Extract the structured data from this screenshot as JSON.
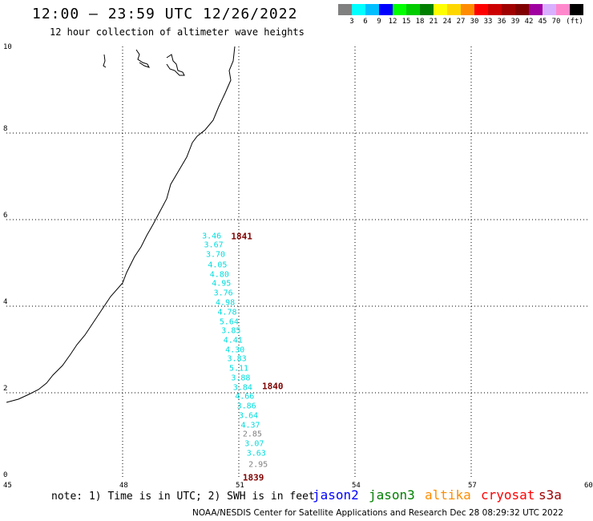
{
  "header": {
    "title": "12:00 – 23:59 UTC 12/26/2022",
    "subtitle": "12 hour collection of altimeter wave heights"
  },
  "colorbar": {
    "colors": [
      "#808080",
      "#00ffff",
      "#00bfff",
      "#0000ff",
      "#00ff00",
      "#00cc00",
      "#008000",
      "#ffff00",
      "#ffd700",
      "#ff8c00",
      "#ff0000",
      "#cc0000",
      "#a00000",
      "#800000",
      "#a000a0",
      "#d8b0ff",
      "#ff88cc",
      "#000000"
    ],
    "labels": [
      "3",
      "6",
      "9",
      "12",
      "15",
      "18",
      "21",
      "24",
      "27",
      "30",
      "33",
      "36",
      "39",
      "42",
      "45",
      "70",
      "(ft)"
    ]
  },
  "map": {
    "x_ticks": [
      "45",
      "48",
      "51",
      "54",
      "57",
      "60"
    ],
    "y_ticks": [
      "0",
      "2",
      "4",
      "6",
      "8",
      "10"
    ],
    "xlim": [
      45,
      60
    ],
    "ylim": [
      0,
      10
    ],
    "grid": true,
    "coastline_color": "#000000",
    "passes": [
      {
        "label": "1841",
        "x": 50.8,
        "y": 5.62,
        "color": "#800000"
      },
      {
        "label": "1840",
        "x": 51.6,
        "y": 2.15,
        "color": "#800000"
      },
      {
        "label": "1839",
        "x": 51.1,
        "y": 0.03,
        "color": "#800000"
      }
    ],
    "observations": [
      {
        "v": "3.46",
        "x": 50.3,
        "y": 5.62,
        "color": "#00dddd"
      },
      {
        "v": "3.67",
        "x": 50.35,
        "y": 5.4,
        "color": "#00dddd"
      },
      {
        "v": "3.70",
        "x": 50.4,
        "y": 5.18,
        "color": "#00dddd"
      },
      {
        "v": "4.05",
        "x": 50.45,
        "y": 4.95,
        "color": "#00dddd"
      },
      {
        "v": "4.80",
        "x": 50.5,
        "y": 4.73,
        "color": "#00dddd"
      },
      {
        "v": "4.95",
        "x": 50.55,
        "y": 4.52,
        "color": "#00dddd"
      },
      {
        "v": "3.76",
        "x": 50.6,
        "y": 4.3,
        "color": "#00dddd"
      },
      {
        "v": "4.98",
        "x": 50.65,
        "y": 4.08,
        "color": "#00dddd"
      },
      {
        "v": "4.78",
        "x": 50.7,
        "y": 3.85,
        "color": "#00dddd"
      },
      {
        "v": "5.64",
        "x": 50.75,
        "y": 3.63,
        "color": "#00dddd"
      },
      {
        "v": "3.85",
        "x": 50.8,
        "y": 3.42,
        "color": "#00dddd"
      },
      {
        "v": "4.41",
        "x": 50.85,
        "y": 3.2,
        "color": "#00dddd"
      },
      {
        "v": "4.30",
        "x": 50.9,
        "y": 2.98,
        "color": "#00dddd"
      },
      {
        "v": "3.83",
        "x": 50.95,
        "y": 2.77,
        "color": "#00dddd"
      },
      {
        "v": "5.11",
        "x": 51.0,
        "y": 2.55,
        "color": "#00dddd"
      },
      {
        "v": "3.88",
        "x": 51.05,
        "y": 2.33,
        "color": "#00dddd"
      },
      {
        "v": "3.84",
        "x": 51.1,
        "y": 2.12,
        "color": "#00dddd"
      },
      {
        "v": "4.66",
        "x": 51.15,
        "y": 1.9,
        "color": "#00dddd"
      },
      {
        "v": "3.86",
        "x": 51.2,
        "y": 1.68,
        "color": "#00dddd"
      },
      {
        "v": "3.64",
        "x": 51.25,
        "y": 1.47,
        "color": "#00dddd"
      },
      {
        "v": "4.37",
        "x": 51.3,
        "y": 1.25,
        "color": "#00dddd"
      },
      {
        "v": "2.85",
        "x": 51.35,
        "y": 1.03,
        "color": "#808080"
      },
      {
        "v": "3.07",
        "x": 51.4,
        "y": 0.82,
        "color": "#00dddd"
      },
      {
        "v": "3.63",
        "x": 51.45,
        "y": 0.6,
        "color": "#00dddd"
      },
      {
        "v": "2.95",
        "x": 51.5,
        "y": 0.33,
        "color": "#808080"
      }
    ]
  },
  "footer": {
    "note": "note: 1) Time is in UTC; 2) SWH is in feet",
    "satellites": [
      {
        "name": "jason2",
        "color": "#0000ff"
      },
      {
        "name": "jason3",
        "color": "#008000"
      },
      {
        "name": "altika",
        "color": "#ff8c00"
      },
      {
        "name": "cryosat",
        "color": "#ff0000"
      },
      {
        "name": "s3a",
        "color": "#a00000"
      }
    ],
    "credit": "NOAA/NESDIS Center for Satellite Applications and Research   Dec 28 08:29:32 UTC 2022"
  }
}
